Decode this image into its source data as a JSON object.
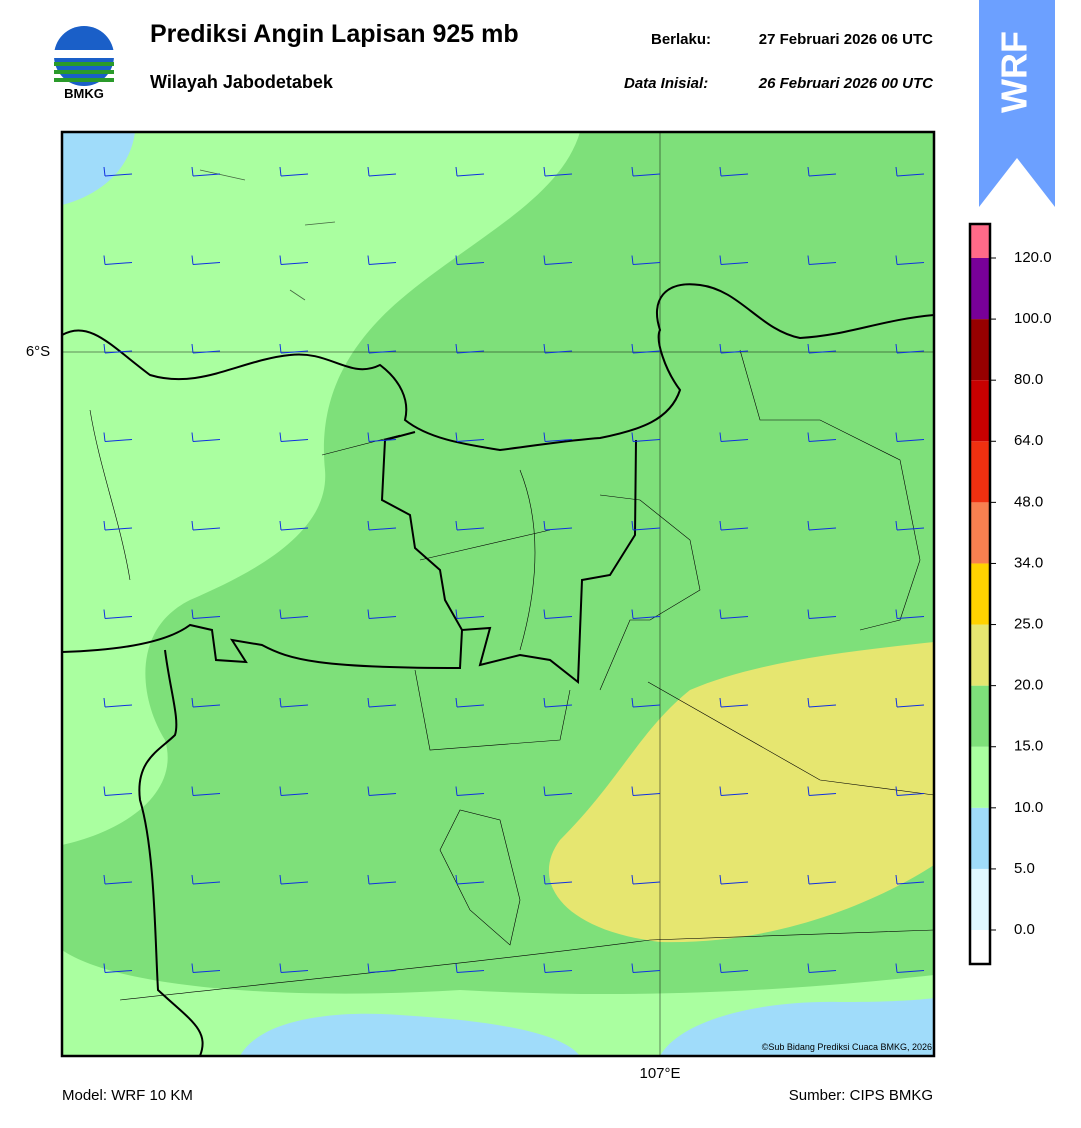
{
  "header": {
    "logo": "BMKG",
    "title": "Prediksi Angin Lapisan 925 mb",
    "subtitle": "Wilayah Jabodetabek",
    "valid_label": "Berlaku:",
    "valid": "27 Februari 2026 06 UTC",
    "init_label": "Data Inisial:",
    "init": "26 Februari 2026 00 UTC",
    "badge": "WRF"
  },
  "map": {
    "lat_label": "6°S",
    "lon_label": "107°E",
    "credit": "©Sub Bidang Prediksi Cuaca BMKG, 2026"
  },
  "colorbar": {
    "ticks": [
      "0.0",
      "5.0",
      "10.0",
      "15.0",
      "20.0",
      "25.0",
      "34.0",
      "48.0",
      "64.0",
      "80.0",
      "100.0",
      "120.0"
    ],
    "colors": [
      "#ffffff",
      "#e0f8ff",
      "#a0dcfa",
      "#aaffa0",
      "#7ee07a",
      "#e6e670",
      "#ffd200",
      "#f88050",
      "#f03010",
      "#c80000",
      "#960000",
      "#780098",
      "#ff6a88"
    ]
  },
  "footer": {
    "model": "Model: WRF 10 KM",
    "source": "Sumber: CIPS BMKG"
  }
}
